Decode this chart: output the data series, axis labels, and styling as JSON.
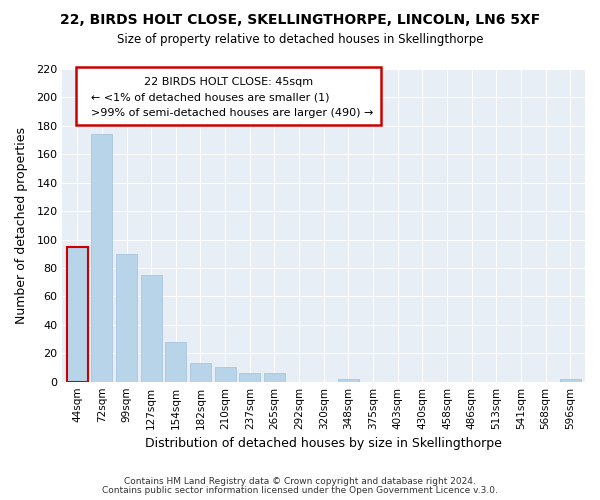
{
  "title": "22, BIRDS HOLT CLOSE, SKELLINGTHORPE, LINCOLN, LN6 5XF",
  "subtitle": "Size of property relative to detached houses in Skellingthorpe",
  "xlabel": "Distribution of detached houses by size in Skellingthorpe",
  "ylabel": "Number of detached properties",
  "bar_color": "#b8d4e8",
  "bar_edge_color": "#a0c0dc",
  "highlight_color": "#cc0000",
  "categories": [
    "44sqm",
    "72sqm",
    "99sqm",
    "127sqm",
    "154sqm",
    "182sqm",
    "210sqm",
    "237sqm",
    "265sqm",
    "292sqm",
    "320sqm",
    "348sqm",
    "375sqm",
    "403sqm",
    "430sqm",
    "458sqm",
    "486sqm",
    "513sqm",
    "541sqm",
    "568sqm",
    "596sqm"
  ],
  "values": [
    95,
    174,
    90,
    75,
    28,
    13,
    10,
    6,
    6,
    0,
    0,
    2,
    0,
    0,
    0,
    0,
    0,
    0,
    0,
    0,
    2
  ],
  "highlight_bar_index": 0,
  "ylim": [
    0,
    220
  ],
  "yticks": [
    0,
    20,
    40,
    60,
    80,
    100,
    120,
    140,
    160,
    180,
    200,
    220
  ],
  "annotation_title": "22 BIRDS HOLT CLOSE: 45sqm",
  "annotation_line1": "← <1% of detached houses are smaller (1)",
  "annotation_line2": ">99% of semi-detached houses are larger (490) →",
  "footer1": "Contains HM Land Registry data © Crown copyright and database right 2024.",
  "footer2": "Contains public sector information licensed under the Open Government Licence v.3.0.",
  "background_color": "#e8eef5"
}
